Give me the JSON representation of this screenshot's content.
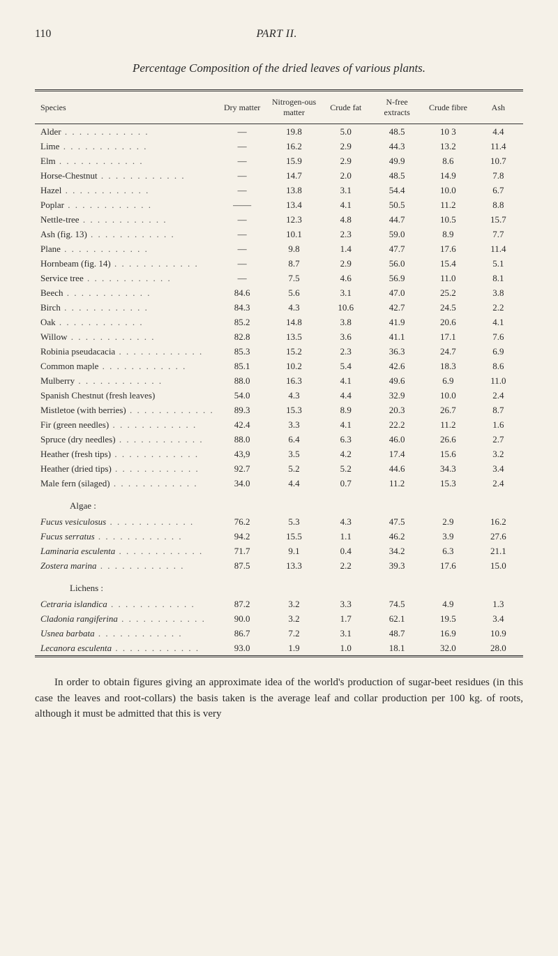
{
  "page_number": "110",
  "part_title": "PART II.",
  "table_title": "Percentage Composition of the dried leaves of various plants.",
  "columns": [
    "Species",
    "Dry matter",
    "Nitrogen-ous matter",
    "Crude fat",
    "N-free extracts",
    "Crude fibre",
    "Ash"
  ],
  "rows": [
    {
      "species": "Alder",
      "dry": "—",
      "nitro": "19.8",
      "fat": "5.0",
      "nfree": "48.5",
      "fibre": "10 3",
      "ash": "4.4"
    },
    {
      "species": "Lime",
      "dry": "—",
      "nitro": "16.2",
      "fat": "2.9",
      "nfree": "44.3",
      "fibre": "13.2",
      "ash": "11.4"
    },
    {
      "species": "Elm",
      "dry": "—",
      "nitro": "15.9",
      "fat": "2.9",
      "nfree": "49.9",
      "fibre": "8.6",
      "ash": "10.7"
    },
    {
      "species": "Horse-Chestnut",
      "dry": "—",
      "nitro": "14.7",
      "fat": "2.0",
      "nfree": "48.5",
      "fibre": "14.9",
      "ash": "7.8"
    },
    {
      "species": "Hazel",
      "dry": "—",
      "nitro": "13.8",
      "fat": "3.1",
      "nfree": "54.4",
      "fibre": "10.0",
      "ash": "6.7"
    },
    {
      "species": "Poplar",
      "dry": "——",
      "nitro": "13.4",
      "fat": "4.1",
      "nfree": "50.5",
      "fibre": "11.2",
      "ash": "8.8"
    },
    {
      "species": "Nettle-tree",
      "dry": "—",
      "nitro": "12.3",
      "fat": "4.8",
      "nfree": "44.7",
      "fibre": "10.5",
      "ash": "15.7"
    },
    {
      "species": "Ash (fig. 13)",
      "dry": "—",
      "nitro": "10.1",
      "fat": "2.3",
      "nfree": "59.0",
      "fibre": "8.9",
      "ash": "7.7"
    },
    {
      "species": "Plane",
      "dry": "—",
      "nitro": "9.8",
      "fat": "1.4",
      "nfree": "47.7",
      "fibre": "17.6",
      "ash": "11.4"
    },
    {
      "species": "Hornbeam (fig. 14)",
      "dry": "—",
      "nitro": "8.7",
      "fat": "2.9",
      "nfree": "56.0",
      "fibre": "15.4",
      "ash": "5.1"
    },
    {
      "species": "Service tree",
      "dry": "—",
      "nitro": "7.5",
      "fat": "4.6",
      "nfree": "56.9",
      "fibre": "11.0",
      "ash": "8.1"
    },
    {
      "species": "Beech",
      "dry": "84.6",
      "nitro": "5.6",
      "fat": "3.1",
      "nfree": "47.0",
      "fibre": "25.2",
      "ash": "3.8"
    },
    {
      "species": "Birch",
      "dry": "84.3",
      "nitro": "4.3",
      "fat": "10.6",
      "nfree": "42.7",
      "fibre": "24.5",
      "ash": "2.2"
    },
    {
      "species": "Oak",
      "dry": "85.2",
      "nitro": "14.8",
      "fat": "3.8",
      "nfree": "41.9",
      "fibre": "20.6",
      "ash": "4.1"
    },
    {
      "species": "Willow",
      "dry": "82.8",
      "nitro": "13.5",
      "fat": "3.6",
      "nfree": "41.1",
      "fibre": "17.1",
      "ash": "7.6"
    },
    {
      "species": "Robinia pseudacacia",
      "dry": "85.3",
      "nitro": "15.2",
      "fat": "2.3",
      "nfree": "36.3",
      "fibre": "24.7",
      "ash": "6.9"
    },
    {
      "species": "Common maple",
      "dry": "85.1",
      "nitro": "10.2",
      "fat": "5.4",
      "nfree": "42.6",
      "fibre": "18.3",
      "ash": "8.6"
    },
    {
      "species": "Mulberry",
      "dry": "88.0",
      "nitro": "16.3",
      "fat": "4.1",
      "nfree": "49.6",
      "fibre": "6.9",
      "ash": "11.0"
    },
    {
      "species": "Spanish Chestnut (fresh leaves)",
      "dry": "54.0",
      "nitro": "4.3",
      "fat": "4.4",
      "nfree": "32.9",
      "fibre": "10.0",
      "ash": "2.4",
      "nodots": true
    },
    {
      "species": "Mistletoe (with berries)",
      "dry": "89.3",
      "nitro": "15.3",
      "fat": "8.9",
      "nfree": "20.3",
      "fibre": "26.7",
      "ash": "8.7"
    },
    {
      "species": "Fir (green needles)",
      "dry": "42.4",
      "nitro": "3.3",
      "fat": "4.1",
      "nfree": "22.2",
      "fibre": "11.2",
      "ash": "1.6"
    },
    {
      "species": "Spruce (dry needles)",
      "dry": "88.0",
      "nitro": "6.4",
      "fat": "6.3",
      "nfree": "46.0",
      "fibre": "26.6",
      "ash": "2.7"
    },
    {
      "species": "Heather (fresh tips)",
      "dry": "43,9",
      "nitro": "3.5",
      "fat": "4.2",
      "nfree": "17.4",
      "fibre": "15.6",
      "ash": "3.2"
    },
    {
      "species": "Heather (dried tips)",
      "dry": "92.7",
      "nitro": "5.2",
      "fat": "5.2",
      "nfree": "44.6",
      "fibre": "34.3",
      "ash": "3.4"
    },
    {
      "species": "Male fern (silaged)",
      "dry": "34.0",
      "nitro": "4.4",
      "fat": "0.7",
      "nfree": "11.2",
      "fibre": "15.3",
      "ash": "2.4"
    }
  ],
  "section_algae": "Algae :",
  "algae_rows": [
    {
      "species": "Fucus vesiculosus",
      "italic": true,
      "dry": "76.2",
      "nitro": "5.3",
      "fat": "4.3",
      "nfree": "47.5",
      "fibre": "2.9",
      "ash": "16.2"
    },
    {
      "species": "Fucus serratus",
      "italic": true,
      "dry": "94.2",
      "nitro": "15.5",
      "fat": "1.1",
      "nfree": "46.2",
      "fibre": "3.9",
      "ash": "27.6"
    },
    {
      "species": "Laminaria esculenta",
      "italic": true,
      "dry": "71.7",
      "nitro": "9.1",
      "fat": "0.4",
      "nfree": "34.2",
      "fibre": "6.3",
      "ash": "21.1"
    },
    {
      "species": "Zostera marina",
      "italic": true,
      "dry": "87.5",
      "nitro": "13.3",
      "fat": "2.2",
      "nfree": "39.3",
      "fibre": "17.6",
      "ash": "15.0"
    }
  ],
  "section_lichens": "Lichens :",
  "lichen_rows": [
    {
      "species": "Cetraria islandica",
      "italic": true,
      "dry": "87.2",
      "nitro": "3.2",
      "fat": "3.3",
      "nfree": "74.5",
      "fibre": "4.9",
      "ash": "1.3"
    },
    {
      "species": "Cladonia rangiferina",
      "italic": true,
      "dry": "90.0",
      "nitro": "3.2",
      "fat": "1.7",
      "nfree": "62.1",
      "fibre": "19.5",
      "ash": "3.4"
    },
    {
      "species": "Usnea barbata",
      "italic": true,
      "dry": "86.7",
      "nitro": "7.2",
      "fat": "3.1",
      "nfree": "48.7",
      "fibre": "16.9",
      "ash": "10.9"
    },
    {
      "species": "Lecanora esculenta",
      "italic": true,
      "dry": "93.0",
      "nitro": "1.9",
      "fat": "1.0",
      "nfree": "18.1",
      "fibre": "32.0",
      "ash": "28.0"
    }
  ],
  "footer_text": "In order to obtain figures giving an approximate idea of the world's production of sugar-beet residues (in this case the leaves and root-collars) the basis taken is the average leaf and collar production per 100 kg. of roots, although it must be admitted that this is very",
  "styles": {
    "background": "#f5f1e8",
    "text_color": "#2a2a2a",
    "border_color": "#333333"
  }
}
